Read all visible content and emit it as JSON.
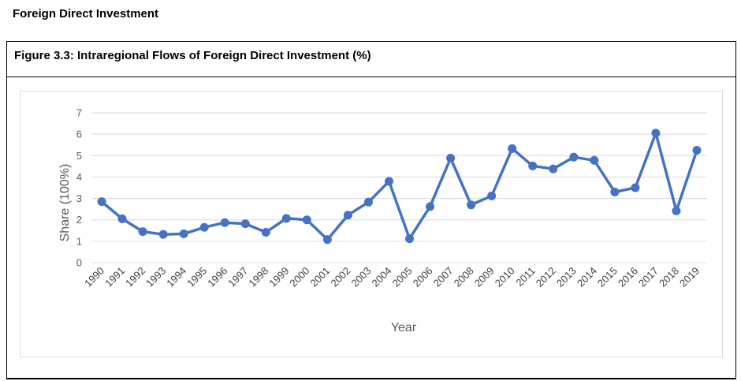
{
  "page": {
    "heading": "Foreign Direct Investment",
    "figure_title": "Figure 3.3: Intraregional Flows of Foreign Direct Investment (%)"
  },
  "colors": {
    "line": "#4472C4",
    "grid": "#d9d9d9",
    "tick_text": "#595959"
  },
  "chart_data": {
    "type": "line",
    "title": "",
    "xlabel": "Year",
    "ylabel": "Share (100%)",
    "ylim": [
      0,
      7
    ],
    "yticks": [
      0,
      1,
      2,
      3,
      4,
      5,
      6,
      7
    ],
    "grid": true,
    "categories": [
      "1990",
      "1991",
      "1992",
      "1993",
      "1994",
      "1995",
      "1996",
      "1997",
      "1998",
      "1999",
      "2000",
      "2001",
      "2002",
      "2003",
      "2004",
      "2005",
      "2006",
      "2007",
      "2008",
      "2009",
      "2010",
      "2011",
      "2012",
      "2013",
      "2014",
      "2015",
      "2016",
      "2017",
      "2018",
      "2019"
    ],
    "series": [
      {
        "values": [
          2.85,
          2.05,
          1.45,
          1.32,
          1.35,
          1.65,
          1.87,
          1.82,
          1.42,
          2.07,
          2.0,
          1.08,
          2.22,
          2.83,
          3.8,
          1.12,
          2.62,
          4.88,
          2.7,
          3.12,
          5.33,
          4.52,
          4.38,
          4.93,
          4.78,
          3.3,
          3.5,
          6.05,
          2.42,
          5.25
        ]
      }
    ]
  }
}
